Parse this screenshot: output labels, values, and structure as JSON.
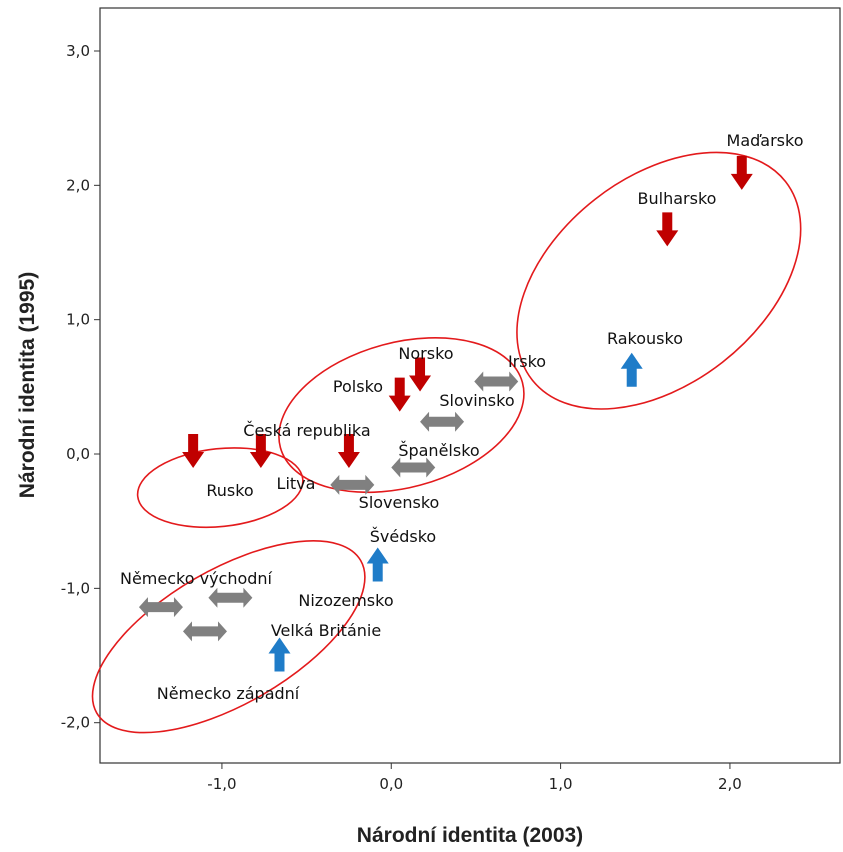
{
  "chart_data": {
    "type": "scatter",
    "xlabel": "Národní identita (2003)",
    "ylabel": "Národní identita (1995)",
    "xlim": [
      -1.72,
      2.65
    ],
    "ylim": [
      -2.3,
      3.32
    ],
    "xticks": [
      -1.0,
      0.0,
      1.0,
      2.0
    ],
    "yticks": [
      -2.0,
      -1.0,
      0.0,
      1.0,
      2.0,
      3.0
    ],
    "xtick_labels": [
      "-1,0",
      "0,0",
      "1,0",
      "2,0"
    ],
    "ytick_labels": [
      "-2,0",
      "-1,0",
      "0,0",
      "1,0",
      "2,0",
      "3,0"
    ],
    "grid": false,
    "marker_colors": {
      "down": "#c00000",
      "up": "#1f7cc8",
      "both": "#808080",
      "cluster": "#e31a1c"
    },
    "points": [
      {
        "label": "Maďarsko",
        "x": 2.07,
        "y": 2.07,
        "marker": "down"
      },
      {
        "label": "Bulharsko",
        "x": 1.63,
        "y": 1.65,
        "marker": "down"
      },
      {
        "label": "Rakousko",
        "x": 1.42,
        "y": 0.65,
        "marker": "up"
      },
      {
        "label": "Norsko",
        "x": 0.17,
        "y": 0.57,
        "marker": "down"
      },
      {
        "label": "Polsko",
        "x": 0.05,
        "y": 0.42,
        "marker": "down"
      },
      {
        "label": "Irsko",
        "x": 0.62,
        "y": 0.54,
        "marker": "both"
      },
      {
        "label": "Slovinsko",
        "x": 0.3,
        "y": 0.24,
        "marker": "both"
      },
      {
        "label": "Španělsko",
        "x": 0.13,
        "y": -0.1,
        "marker": "both"
      },
      {
        "label": "Česká republika",
        "x": -0.25,
        "y": 0.0,
        "marker": "down"
      },
      {
        "label": "Slovensko",
        "x": -0.23,
        "y": -0.23,
        "marker": "both"
      },
      {
        "label": "Švédsko",
        "x": -0.08,
        "y": -0.8,
        "marker": "up"
      },
      {
        "label": "Rusko",
        "x": -1.17,
        "y": 0.0,
        "marker": "down"
      },
      {
        "label": "Litva",
        "x": -0.77,
        "y": 0.0,
        "marker": "down"
      },
      {
        "label": "Německo východní",
        "x": -1.36,
        "y": -1.14,
        "marker": "both"
      },
      {
        "label": "Nizozemsko",
        "x": -0.95,
        "y": -1.07,
        "marker": "both"
      },
      {
        "label": "Velká Británie",
        "x": -1.1,
        "y": -1.32,
        "marker": "both"
      },
      {
        "label": "Německo západní",
        "x": -0.66,
        "y": -1.47,
        "marker": "up"
      }
    ],
    "clusters": [
      {
        "cx": 1.58,
        "cy": 1.29,
        "rx": 0.95,
        "ry": 0.77,
        "rot": -38
      },
      {
        "cx": 0.06,
        "cy": 0.29,
        "rx": 0.74,
        "ry": 0.54,
        "rot": -15
      },
      {
        "cx": -1.01,
        "cy": -0.25,
        "rx": 0.49,
        "ry": 0.29,
        "rot": -6
      },
      {
        "cx": -0.96,
        "cy": -1.36,
        "rx": 0.9,
        "ry": 0.5,
        "rot": -30
      }
    ]
  }
}
